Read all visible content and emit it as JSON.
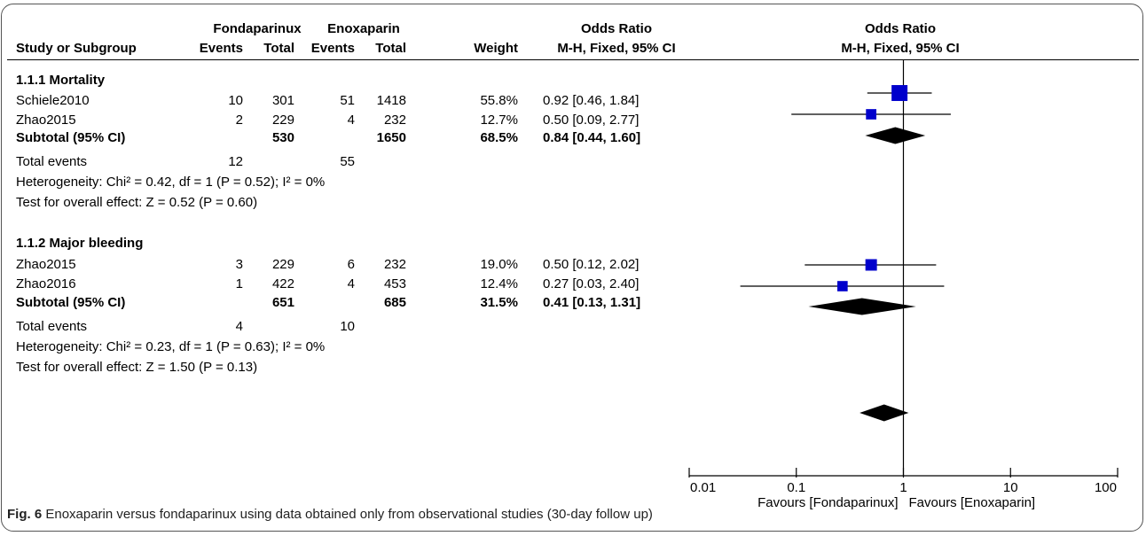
{
  "header": {
    "study_col": "Study or Subgroup",
    "group1": "Fondaparinux",
    "group2": "Enoxaparin",
    "events": "Events",
    "total": "Total",
    "weight": "Weight",
    "or_title": "Odds Ratio",
    "or_method": "M-H, Fixed, 95% CI",
    "plot_title": "Odds Ratio",
    "plot_method": "M-H, Fixed, 95% CI"
  },
  "rows": [
    {
      "kind": "heading",
      "label": "1.1.1 Mortality"
    },
    {
      "kind": "study",
      "label": "Schiele2010",
      "e1": "10",
      "t1": "301",
      "e2": "51",
      "t2": "1418",
      "weight": "55.8%",
      "ci": "0.92 [0.46, 1.84]"
    },
    {
      "kind": "study",
      "label": "Zhao2015",
      "e1": "2",
      "t1": "229",
      "e2": "4",
      "t2": "232",
      "weight": "12.7%",
      "ci": "0.50 [0.09, 2.77]"
    },
    {
      "kind": "subtotal",
      "label": "Subtotal (95% CI)",
      "t1": "530",
      "t2": "1650",
      "weight": "68.5%",
      "ci": "0.84 [0.44, 1.60]"
    },
    {
      "kind": "events",
      "label": "Total events",
      "e1": "12",
      "e2": "55"
    },
    {
      "kind": "note",
      "label": "Heterogeneity: Chi² = 0.42, df = 1 (P = 0.52); I² = 0%"
    },
    {
      "kind": "note",
      "label": "Test for overall effect: Z = 0.52 (P = 0.60)"
    },
    {
      "kind": "heading",
      "label": "1.1.2 Major bleeding"
    },
    {
      "kind": "study",
      "label": "Zhao2015",
      "e1": "3",
      "t1": "229",
      "e2": "6",
      "t2": "232",
      "weight": "19.0%",
      "ci": "0.50 [0.12, 2.02]"
    },
    {
      "kind": "study",
      "label": "Zhao2016",
      "e1": "1",
      "t1": "422",
      "e2": "4",
      "t2": "453",
      "weight": "12.4%",
      "ci": "0.27 [0.03, 2.40]"
    },
    {
      "kind": "subtotal",
      "label": "Subtotal (95% CI)",
      "t1": "651",
      "t2": "685",
      "weight": "31.5%",
      "ci": "0.41 [0.13, 1.31]"
    },
    {
      "kind": "events",
      "label": "Total events",
      "e1": "4",
      "e2": "10"
    },
    {
      "kind": "note",
      "label": "Heterogeneity: Chi² = 0.23, df = 1 (P = 0.63); I² = 0%"
    },
    {
      "kind": "note",
      "label": "Test for overall effect: Z = 1.50 (P = 0.13)"
    }
  ],
  "axis": {
    "ticks": [
      "0.01",
      "0.1",
      "1",
      "10",
      "100"
    ],
    "favours_left": "Favours [Fondaparinux]",
    "favours_right": "Favours [Enoxaparin]"
  },
  "caption": {
    "label": "Fig. 6",
    "text": "Enoxaparin versus fondaparinux using data obtained only from observational studies (30-day follow up)"
  },
  "chart_data": {
    "type": "forest",
    "scale": "log",
    "xlim": [
      0.01,
      100
    ],
    "reference_line": 1,
    "marker_color": "#0000cc",
    "estimates": [
      {
        "label": "Schiele2010",
        "subgroup": "1.1.1 Mortality",
        "or": 0.92,
        "lo": 0.46,
        "hi": 1.84,
        "weight": 55.8
      },
      {
        "label": "Zhao2015",
        "subgroup": "1.1.1 Mortality",
        "or": 0.5,
        "lo": 0.09,
        "hi": 2.77,
        "weight": 12.7
      },
      {
        "label": "Zhao2015",
        "subgroup": "1.1.2 Major bleeding",
        "or": 0.5,
        "lo": 0.12,
        "hi": 2.02,
        "weight": 19.0
      },
      {
        "label": "Zhao2016",
        "subgroup": "1.1.2 Major bleeding",
        "or": 0.27,
        "lo": 0.03,
        "hi": 2.4,
        "weight": 12.4
      }
    ],
    "pooled": [
      {
        "label": "Subtotal (95% CI)",
        "subgroup": "1.1.1 Mortality",
        "or": 0.84,
        "lo": 0.44,
        "hi": 1.6
      },
      {
        "label": "Subtotal (95% CI)",
        "subgroup": "1.1.2 Major bleeding",
        "or": 0.41,
        "lo": 0.13,
        "hi": 1.31
      },
      {
        "label": "Total",
        "or": 0.66,
        "lo": 0.39,
        "hi": 1.12
      }
    ]
  }
}
